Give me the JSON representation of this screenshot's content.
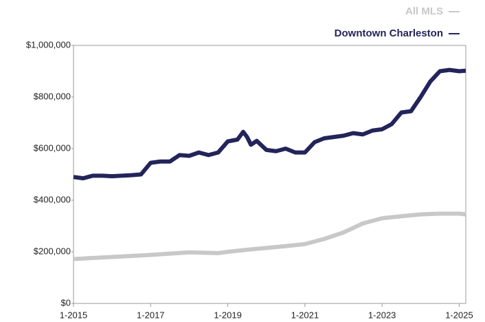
{
  "chart_data": {
    "type": "line",
    "xlim": [
      2015,
      2025.17
    ],
    "xticks": [
      {
        "value": 2015,
        "label": "1-2015"
      },
      {
        "value": 2017,
        "label": "1-2017"
      },
      {
        "value": 2019,
        "label": "1-2019"
      },
      {
        "value": 2021,
        "label": "1-2021"
      },
      {
        "value": 2023,
        "label": "1-2023"
      },
      {
        "value": 2025,
        "label": "1-2025"
      }
    ],
    "ylim": [
      0,
      1000000
    ],
    "yticks": [
      {
        "value": 0,
        "label": "$0"
      },
      {
        "value": 200000,
        "label": "$200,000"
      },
      {
        "value": 400000,
        "label": "$400,000"
      },
      {
        "value": 600000,
        "label": "$600,000"
      },
      {
        "value": 800000,
        "label": "$800,000"
      },
      {
        "value": 1000000,
        "label": "$1,000,000"
      }
    ],
    "grid": false,
    "legend": "top-right",
    "series": [
      {
        "name": "All MLS",
        "color": "#c8c8c8",
        "x": [
          2015,
          2016,
          2017,
          2018,
          2018.75,
          2019,
          2019.5,
          2020,
          2020.5,
          2021,
          2021.5,
          2022,
          2022.5,
          2023,
          2023.5,
          2024,
          2024.5,
          2025,
          2025.17
        ],
        "values": [
          172000,
          180000,
          188000,
          198000,
          195000,
          200000,
          208000,
          215000,
          222000,
          230000,
          250000,
          275000,
          310000,
          330000,
          338000,
          345000,
          348000,
          348000,
          345000
        ]
      },
      {
        "name": "Downtown Charleston",
        "color": "#23245a",
        "x": [
          2015,
          2015.25,
          2015.5,
          2015.75,
          2016,
          2016.25,
          2016.5,
          2016.75,
          2017,
          2017.25,
          2017.5,
          2017.75,
          2018,
          2018.25,
          2018.5,
          2018.75,
          2019,
          2019.25,
          2019.4,
          2019.5,
          2019.6,
          2019.75,
          2020,
          2020.25,
          2020.5,
          2020.75,
          2021,
          2021.25,
          2021.5,
          2021.75,
          2022,
          2022.25,
          2022.5,
          2022.75,
          2023,
          2023.25,
          2023.5,
          2023.75,
          2024,
          2024.25,
          2024.5,
          2024.75,
          2025,
          2025.17
        ],
        "values": [
          490000,
          485000,
          495000,
          495000,
          493000,
          495000,
          497000,
          500000,
          545000,
          550000,
          550000,
          575000,
          572000,
          585000,
          575000,
          585000,
          628000,
          635000,
          665000,
          645000,
          615000,
          630000,
          595000,
          590000,
          600000,
          585000,
          585000,
          625000,
          640000,
          645000,
          650000,
          660000,
          655000,
          670000,
          675000,
          695000,
          740000,
          745000,
          800000,
          860000,
          900000,
          905000,
          900000,
          902000
        ]
      }
    ]
  }
}
